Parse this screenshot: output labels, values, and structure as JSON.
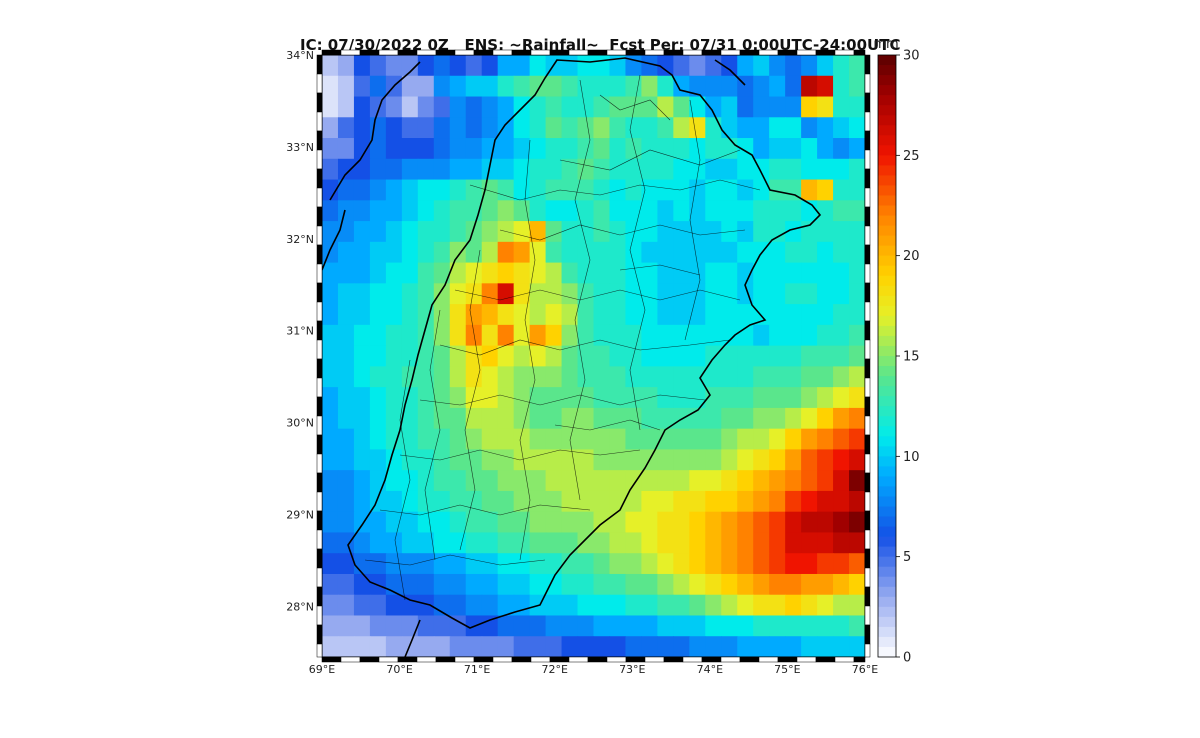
{
  "title": "IC: 07/30/2022 0Z   ENS: ~Rainfall~  Fcst Per: 07/31 0:00UTC-24:00UTC",
  "colorbar": {
    "unit": "mm",
    "ticks": [
      0,
      5,
      10,
      15,
      20,
      25,
      30
    ],
    "min": 0,
    "max": 30
  },
  "axes": {
    "lon_ticks": [
      "69°E",
      "70°E",
      "71°E",
      "72°E",
      "73°E",
      "74°E",
      "75°E",
      "76°E"
    ],
    "lat_ticks": [
      "34°N",
      "33°N",
      "32°N",
      "31°N",
      "30°N",
      "29°N",
      "28°N"
    ],
    "lon_range": [
      69,
      76
    ],
    "lat_range": [
      27.45,
      34
    ]
  },
  "grid": {
    "cols": 34,
    "rows": 29,
    "rain_mm": [
      [
        2,
        3,
        6,
        5,
        4,
        4,
        6,
        7,
        6,
        5,
        6,
        9,
        9,
        11,
        10,
        10,
        11,
        11,
        10,
        8,
        7,
        6,
        5,
        4,
        5,
        6,
        9,
        10,
        8,
        7,
        8,
        10,
        12,
        13
      ],
      [
        1,
        2,
        5,
        7,
        5,
        3,
        3,
        8,
        9,
        10,
        10,
        12,
        13,
        14,
        14,
        13,
        12,
        12,
        12,
        13,
        15,
        12,
        9,
        8,
        8,
        8,
        7,
        8,
        9,
        7,
        27,
        26,
        12,
        13
      ],
      [
        1,
        2,
        6,
        5,
        4,
        2,
        4,
        5,
        8,
        7,
        8,
        9,
        11,
        12,
        13,
        12,
        12,
        13,
        14,
        14,
        14,
        16,
        14,
        11,
        9,
        10,
        7,
        8,
        8,
        8,
        19,
        18,
        12,
        12
      ],
      [
        3,
        5,
        6,
        7,
        6,
        5,
        5,
        7,
        8,
        7,
        8,
        9,
        11,
        12,
        14,
        13,
        14,
        15,
        13,
        12,
        12,
        13,
        16,
        18,
        12,
        10,
        9,
        9,
        11,
        11,
        8,
        9,
        10,
        11
      ],
      [
        4,
        4,
        6,
        7,
        6,
        6,
        6,
        7,
        8,
        8,
        9,
        9,
        10,
        11,
        12,
        12,
        13,
        14,
        12,
        13,
        12,
        12,
        12,
        11,
        12,
        12,
        11,
        9,
        10,
        10,
        11,
        9,
        8,
        9
      ],
      [
        5,
        6,
        6,
        7,
        7,
        8,
        8,
        8,
        9,
        9,
        10,
        10,
        11,
        12,
        12,
        13,
        14,
        13,
        12,
        12,
        12,
        12,
        11,
        11,
        10,
        10,
        11,
        11,
        12,
        12,
        11,
        11,
        11,
        12
      ],
      [
        6,
        7,
        7,
        8,
        9,
        10,
        11,
        11,
        12,
        13,
        14,
        13,
        11,
        12,
        13,
        13,
        13,
        12,
        11,
        12,
        11,
        11,
        11,
        10,
        11,
        11,
        10,
        11,
        13,
        13,
        20,
        19,
        12,
        12
      ],
      [
        7,
        8,
        8,
        9,
        9,
        10,
        11,
        12,
        13,
        13,
        14,
        15,
        14,
        12,
        11,
        11,
        12,
        13,
        11,
        11,
        11,
        10,
        11,
        10,
        11,
        11,
        11,
        12,
        12,
        12,
        11,
        12,
        13,
        13
      ],
      [
        8,
        8,
        9,
        9,
        10,
        11,
        12,
        12,
        13,
        14,
        15,
        16,
        17,
        20,
        14,
        12,
        12,
        13,
        12,
        11,
        11,
        10,
        10,
        10,
        10,
        11,
        10,
        12,
        12,
        11,
        12,
        12,
        12,
        12
      ],
      [
        8,
        9,
        9,
        10,
        10,
        11,
        12,
        13,
        15,
        14,
        16,
        22,
        21,
        17,
        13,
        12,
        12,
        12,
        12,
        11,
        10,
        10,
        10,
        10,
        10,
        10,
        11,
        11,
        11,
        12,
        12,
        11,
        12,
        12
      ],
      [
        9,
        9,
        9,
        10,
        11,
        11,
        13,
        14,
        16,
        17,
        18,
        19,
        18,
        17,
        16,
        13,
        12,
        12,
        12,
        11,
        11,
        10,
        10,
        10,
        11,
        11,
        10,
        11,
        11,
        11,
        11,
        11,
        11,
        12
      ],
      [
        9,
        10,
        10,
        11,
        11,
        12,
        13,
        15,
        17,
        18,
        22,
        26,
        18,
        16,
        16,
        15,
        13,
        12,
        12,
        11,
        11,
        10,
        10,
        10,
        11,
        11,
        10,
        11,
        11,
        12,
        12,
        11,
        11,
        12
      ],
      [
        9,
        10,
        10,
        11,
        11,
        12,
        13,
        15,
        18,
        21,
        20,
        18,
        17,
        16,
        17,
        16,
        13,
        12,
        12,
        11,
        11,
        10,
        10,
        10,
        11,
        11,
        11,
        11,
        11,
        11,
        11,
        11,
        12,
        12
      ],
      [
        10,
        10,
        11,
        11,
        12,
        12,
        13,
        15,
        18,
        22,
        18,
        22,
        17,
        21,
        19,
        15,
        13,
        12,
        12,
        12,
        11,
        11,
        11,
        11,
        11,
        11,
        11,
        10,
        11,
        11,
        11,
        12,
        12,
        13
      ],
      [
        10,
        10,
        11,
        11,
        12,
        12,
        13,
        14,
        16,
        18,
        19,
        17,
        16,
        17,
        16,
        14,
        13,
        13,
        12,
        12,
        11,
        11,
        11,
        11,
        12,
        12,
        12,
        12,
        12,
        12,
        13,
        13,
        13,
        14
      ],
      [
        10,
        10,
        11,
        12,
        12,
        13,
        13,
        14,
        16,
        18,
        17,
        16,
        15,
        15,
        15,
        14,
        13,
        13,
        13,
        12,
        12,
        12,
        12,
        12,
        12,
        12,
        12,
        13,
        13,
        13,
        14,
        14,
        15,
        16
      ],
      [
        9,
        10,
        10,
        11,
        12,
        12,
        13,
        14,
        15,
        17,
        17,
        16,
        15,
        14,
        14,
        14,
        14,
        13,
        13,
        13,
        13,
        12,
        12,
        12,
        13,
        13,
        13,
        14,
        14,
        14,
        15,
        16,
        17,
        18
      ],
      [
        9,
        10,
        10,
        11,
        12,
        12,
        13,
        14,
        14,
        16,
        16,
        16,
        15,
        14,
        14,
        15,
        15,
        14,
        14,
        14,
        13,
        13,
        13,
        13,
        13,
        14,
        14,
        15,
        15,
        16,
        17,
        19,
        21,
        22
      ],
      [
        9,
        9,
        10,
        11,
        12,
        12,
        13,
        13,
        14,
        15,
        16,
        16,
        16,
        15,
        15,
        15,
        15,
        15,
        15,
        14,
        14,
        14,
        14,
        14,
        14,
        15,
        16,
        16,
        17,
        19,
        21,
        22,
        23,
        24
      ],
      [
        9,
        9,
        10,
        10,
        11,
        12,
        12,
        13,
        14,
        14,
        15,
        15,
        16,
        16,
        16,
        16,
        16,
        15,
        15,
        15,
        15,
        15,
        15,
        15,
        15,
        16,
        17,
        18,
        19,
        21,
        23,
        24,
        25,
        26
      ],
      [
        8,
        8,
        9,
        10,
        11,
        11,
        12,
        13,
        13,
        14,
        14,
        15,
        15,
        15,
        16,
        16,
        16,
        16,
        16,
        16,
        16,
        16,
        16,
        17,
        17,
        18,
        19,
        20,
        21,
        22,
        23,
        24,
        26,
        29
      ],
      [
        8,
        8,
        9,
        10,
        10,
        11,
        12,
        12,
        13,
        13,
        14,
        14,
        15,
        15,
        15,
        16,
        16,
        16,
        16,
        16,
        17,
        17,
        18,
        18,
        19,
        19,
        20,
        21,
        22,
        24,
        25,
        26,
        26,
        27
      ],
      [
        8,
        8,
        9,
        9,
        10,
        10,
        11,
        11,
        12,
        13,
        13,
        14,
        14,
        15,
        15,
        15,
        15,
        16,
        16,
        17,
        17,
        18,
        18,
        19,
        20,
        21,
        22,
        23,
        24,
        26,
        27,
        27,
        28,
        29
      ],
      [
        7,
        7,
        8,
        9,
        9,
        10,
        10,
        11,
        11,
        12,
        12,
        13,
        13,
        14,
        14,
        14,
        15,
        15,
        16,
        16,
        17,
        18,
        18,
        19,
        20,
        21,
        22,
        23,
        24,
        26,
        26,
        26,
        27,
        27
      ],
      [
        6,
        6,
        7,
        7,
        8,
        8,
        8,
        9,
        9,
        10,
        10,
        11,
        11,
        12,
        12,
        13,
        13,
        14,
        15,
        15,
        16,
        17,
        18,
        19,
        20,
        21,
        22,
        23,
        24,
        25,
        25,
        24,
        24,
        23
      ],
      [
        5,
        5,
        6,
        6,
        7,
        7,
        7,
        8,
        8,
        9,
        9,
        10,
        10,
        11,
        11,
        12,
        12,
        13,
        13,
        14,
        14,
        15,
        16,
        17,
        18,
        19,
        20,
        21,
        22,
        22,
        21,
        21,
        20,
        19
      ],
      [
        4,
        4,
        5,
        5,
        6,
        6,
        6,
        7,
        7,
        8,
        8,
        9,
        9,
        10,
        10,
        10,
        11,
        11,
        11,
        12,
        12,
        13,
        13,
        14,
        15,
        16,
        17,
        18,
        18,
        19,
        18,
        17,
        16,
        16
      ],
      [
        3,
        3,
        3,
        4,
        4,
        4,
        5,
        5,
        5,
        6,
        6,
        7,
        7,
        7,
        8,
        8,
        8,
        9,
        9,
        9,
        9,
        10,
        10,
        10,
        11,
        11,
        11,
        12,
        12,
        12,
        12,
        12,
        12,
        13
      ],
      [
        2,
        2,
        2,
        2,
        3,
        3,
        3,
        3,
        4,
        4,
        4,
        4,
        5,
        5,
        5,
        6,
        6,
        6,
        6,
        7,
        7,
        7,
        7,
        8,
        8,
        8,
        9,
        9,
        9,
        9,
        10,
        10,
        10,
        10
      ]
    ]
  },
  "colors": {
    "frame_black": "#000000",
    "frame_white": "#ffffff",
    "boundary": "#000000"
  }
}
